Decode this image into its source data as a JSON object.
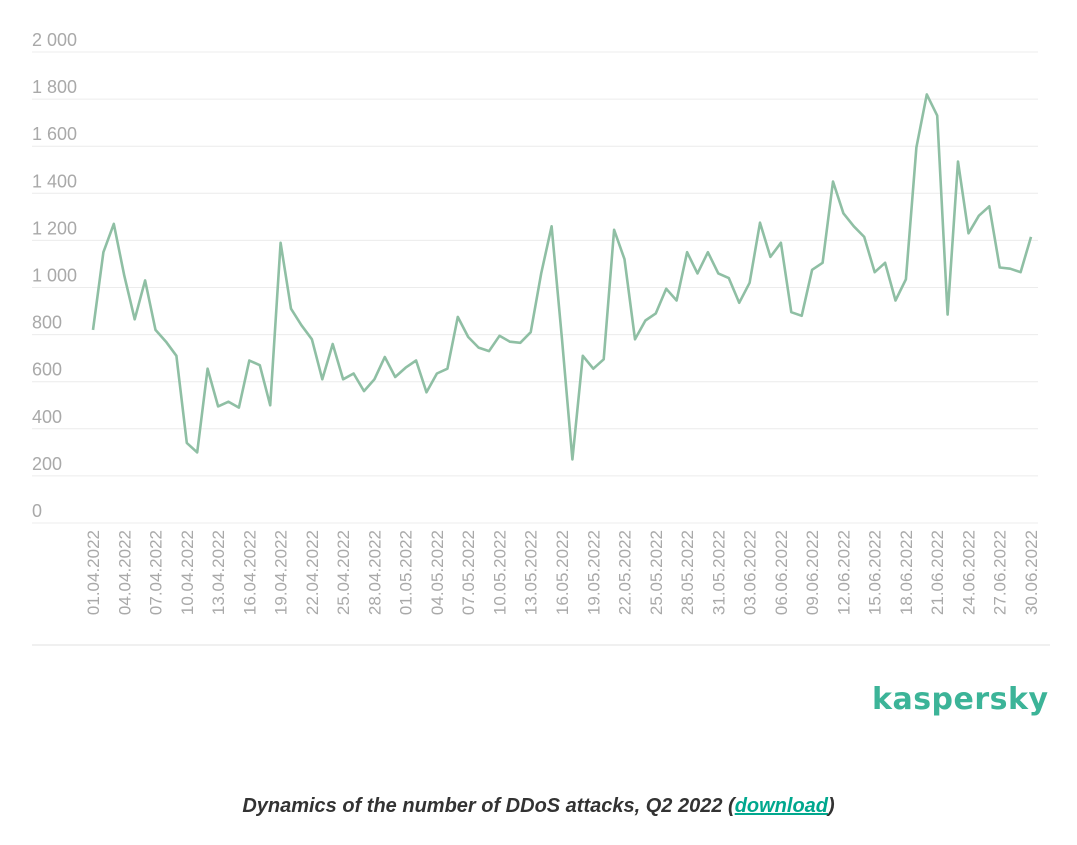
{
  "chart_data": {
    "type": "line",
    "title": "",
    "xlabel": "",
    "ylabel": "",
    "ylim": [
      0,
      2000
    ],
    "y_ticks": [
      "0",
      "200",
      "400",
      "600",
      "800",
      "1 000",
      "1 200",
      "1 400",
      "1 600",
      "1 800",
      "2 000"
    ],
    "y_tick_values": [
      0,
      200,
      400,
      600,
      800,
      1000,
      1200,
      1400,
      1600,
      1800,
      2000
    ],
    "x_tick_labels": [
      "01.04.2022",
      "04.04.2022",
      "07.04.2022",
      "10.04.2022",
      "13.04.2022",
      "16.04.2022",
      "19.04.2022",
      "22.04.2022",
      "25.04.2022",
      "28.04.2022",
      "01.05.2022",
      "04.05.2022",
      "07.05.2022",
      "10.05.2022",
      "13.05.2022",
      "16.05.2022",
      "19.05.2022",
      "22.05.2022",
      "25.05.2022",
      "28.05.2022",
      "31.05.2022",
      "03.06.2022",
      "06.06.2022",
      "09.06.2022",
      "12.06.2022",
      "15.06.2022",
      "18.06.2022",
      "21.06.2022",
      "24.06.2022",
      "27.06.2022",
      "30.06.2022"
    ],
    "grid": true,
    "line_color": "#8fbfa4",
    "series": [
      {
        "values": [
          820,
          1150,
          1270,
          1050,
          865,
          1030,
          820,
          770,
          710,
          340,
          300,
          655,
          495,
          515,
          490,
          690,
          670,
          500,
          1190,
          910,
          840,
          780,
          610,
          760,
          610,
          635,
          560,
          610,
          705,
          620,
          660,
          690,
          555,
          635,
          655,
          875,
          790,
          745,
          730,
          795,
          770,
          765,
          810,
          1060,
          1260,
          780,
          270,
          710,
          655,
          695,
          1245,
          1120,
          780,
          860,
          890,
          995,
          945,
          1150,
          1060,
          1150,
          1060,
          1040,
          935,
          1020,
          1275,
          1130,
          1190,
          895,
          880,
          1075,
          1105,
          1450,
          1315,
          1260,
          1215,
          1065,
          1105,
          945,
          1035,
          1595,
          1820,
          1730,
          885,
          1535,
          1230,
          1305,
          1345,
          1085,
          1080,
          1065,
          1215
        ]
      }
    ]
  },
  "logo_text": "kaspersky",
  "caption": {
    "text": "Dynamics of the number of DDoS attacks, Q2 2022 (",
    "link": "download",
    "close": ")"
  }
}
